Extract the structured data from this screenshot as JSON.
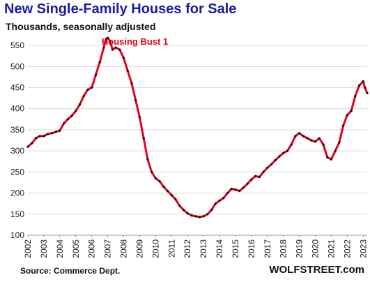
{
  "header": {
    "title": "New Single-Family Houses for Sale",
    "subtitle": "Thousands, seasonally adjusted"
  },
  "footer": {
    "source": "Source: Commerce Dept.",
    "brand": "WOLFSTREET.com"
  },
  "colors": {
    "title": "#1a1aa0",
    "line": "#e8001c",
    "markers": "#111111",
    "annotation": "#e8001c",
    "grid": "#d9d9d9"
  },
  "chart_data": {
    "type": "line",
    "title": "New Single-Family Houses for Sale",
    "subtitle": "Thousands, seasonally adjusted",
    "xlabel": "",
    "ylabel": "",
    "xlim": [
      2002.0,
      2023.25
    ],
    "ylim": [
      100,
      575
    ],
    "yticks": [
      100,
      150,
      200,
      250,
      300,
      350,
      400,
      450,
      500,
      550
    ],
    "xticks": [
      "2002",
      "2003",
      "2004",
      "2005",
      "2006",
      "2007",
      "2008",
      "2009",
      "2010",
      "2011",
      "2012",
      "2013",
      "2014",
      "2015",
      "2016",
      "2017",
      "2018",
      "2019",
      "2020",
      "2021",
      "2022",
      "2023"
    ],
    "grid": "horizontal",
    "annotations": [
      {
        "text": "Housing Bust 1",
        "x": 2008.7,
        "y": 560
      }
    ],
    "series": [
      {
        "name": "",
        "points": [
          [
            2002.0,
            310
          ],
          [
            2002.25,
            318
          ],
          [
            2002.5,
            330
          ],
          [
            2002.75,
            335
          ],
          [
            2003.0,
            335
          ],
          [
            2003.25,
            340
          ],
          [
            2003.5,
            342
          ],
          [
            2003.75,
            345
          ],
          [
            2004.0,
            348
          ],
          [
            2004.25,
            365
          ],
          [
            2004.5,
            375
          ],
          [
            2004.75,
            383
          ],
          [
            2005.0,
            395
          ],
          [
            2005.25,
            410
          ],
          [
            2005.5,
            430
          ],
          [
            2005.75,
            445
          ],
          [
            2006.0,
            450
          ],
          [
            2006.25,
            480
          ],
          [
            2006.5,
            510
          ],
          [
            2006.75,
            545
          ],
          [
            2006.9,
            565
          ],
          [
            2007.0,
            568
          ],
          [
            2007.15,
            560
          ],
          [
            2007.3,
            540
          ],
          [
            2007.5,
            545
          ],
          [
            2007.75,
            540
          ],
          [
            2008.0,
            520
          ],
          [
            2008.25,
            490
          ],
          [
            2008.5,
            460
          ],
          [
            2008.75,
            420
          ],
          [
            2009.0,
            380
          ],
          [
            2009.25,
            330
          ],
          [
            2009.5,
            280
          ],
          [
            2009.75,
            250
          ],
          [
            2010.0,
            235
          ],
          [
            2010.25,
            228
          ],
          [
            2010.5,
            215
          ],
          [
            2010.75,
            205
          ],
          [
            2011.0,
            195
          ],
          [
            2011.25,
            185
          ],
          [
            2011.5,
            170
          ],
          [
            2011.75,
            160
          ],
          [
            2012.0,
            152
          ],
          [
            2012.25,
            147
          ],
          [
            2012.5,
            145
          ],
          [
            2012.75,
            143
          ],
          [
            2013.0,
            145
          ],
          [
            2013.25,
            150
          ],
          [
            2013.5,
            160
          ],
          [
            2013.75,
            175
          ],
          [
            2014.0,
            182
          ],
          [
            2014.25,
            188
          ],
          [
            2014.5,
            200
          ],
          [
            2014.75,
            210
          ],
          [
            2015.0,
            208
          ],
          [
            2015.25,
            205
          ],
          [
            2015.5,
            213
          ],
          [
            2015.75,
            222
          ],
          [
            2016.0,
            232
          ],
          [
            2016.25,
            240
          ],
          [
            2016.5,
            238
          ],
          [
            2016.75,
            250
          ],
          [
            2017.0,
            260
          ],
          [
            2017.25,
            268
          ],
          [
            2017.5,
            278
          ],
          [
            2017.75,
            287
          ],
          [
            2018.0,
            295
          ],
          [
            2018.25,
            300
          ],
          [
            2018.5,
            315
          ],
          [
            2018.75,
            335
          ],
          [
            2019.0,
            342
          ],
          [
            2019.25,
            335
          ],
          [
            2019.5,
            330
          ],
          [
            2019.75,
            325
          ],
          [
            2020.0,
            322
          ],
          [
            2020.25,
            330
          ],
          [
            2020.5,
            315
          ],
          [
            2020.75,
            285
          ],
          [
            2021.0,
            280
          ],
          [
            2021.25,
            300
          ],
          [
            2021.5,
            320
          ],
          [
            2021.75,
            360
          ],
          [
            2022.0,
            385
          ],
          [
            2022.25,
            395
          ],
          [
            2022.5,
            430
          ],
          [
            2022.75,
            455
          ],
          [
            2023.0,
            465
          ],
          [
            2023.1,
            450
          ],
          [
            2023.25,
            437
          ]
        ]
      }
    ]
  }
}
